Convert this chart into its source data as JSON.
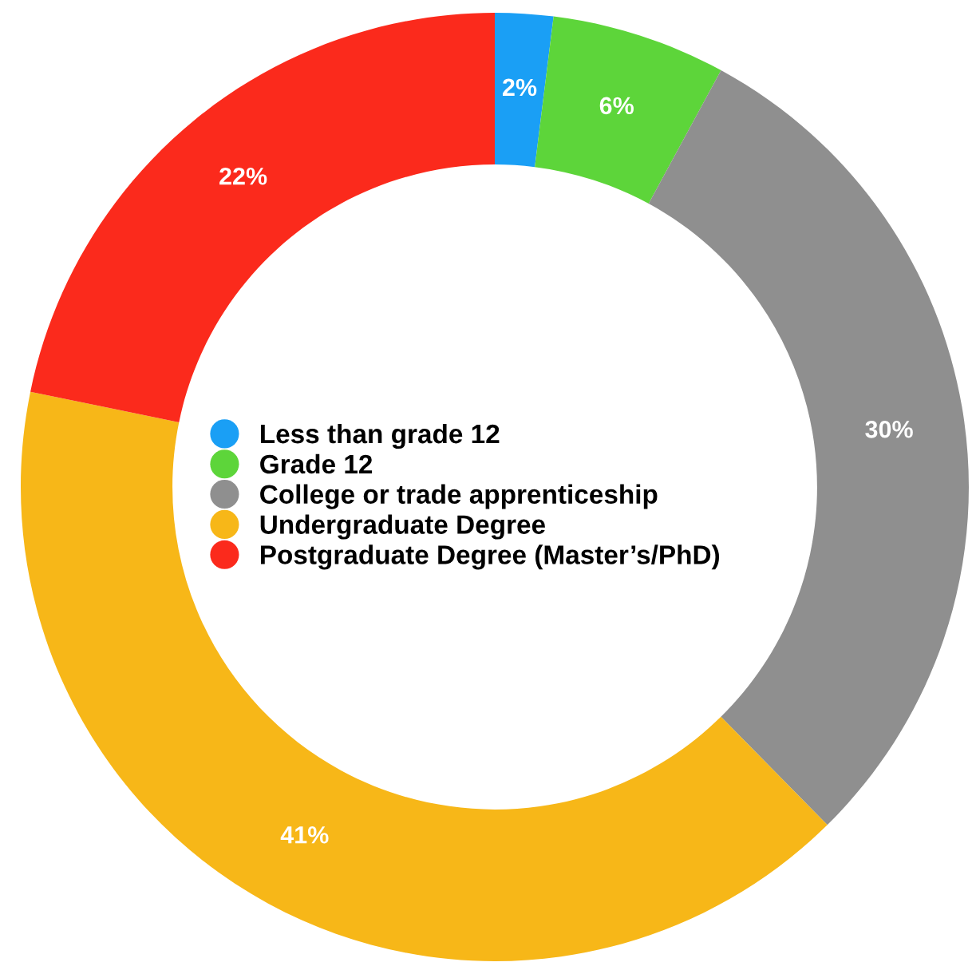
{
  "chart_data": {
    "type": "donut",
    "categories": [
      "Less than grade 12",
      "Grade 12",
      "College or trade apprenticeship",
      "Undergraduate Degree",
      "Postgraduate Degree (Master’s/PhD)"
    ],
    "values": [
      2,
      6,
      30,
      41,
      22
    ],
    "colors": [
      "#1a9ff5",
      "#5dd53a",
      "#8f8f8f",
      "#f7b718",
      "#fb2a1c"
    ],
    "value_labels": [
      "2%",
      "6%",
      "30%",
      "41%",
      "22%"
    ],
    "legend": "center"
  }
}
